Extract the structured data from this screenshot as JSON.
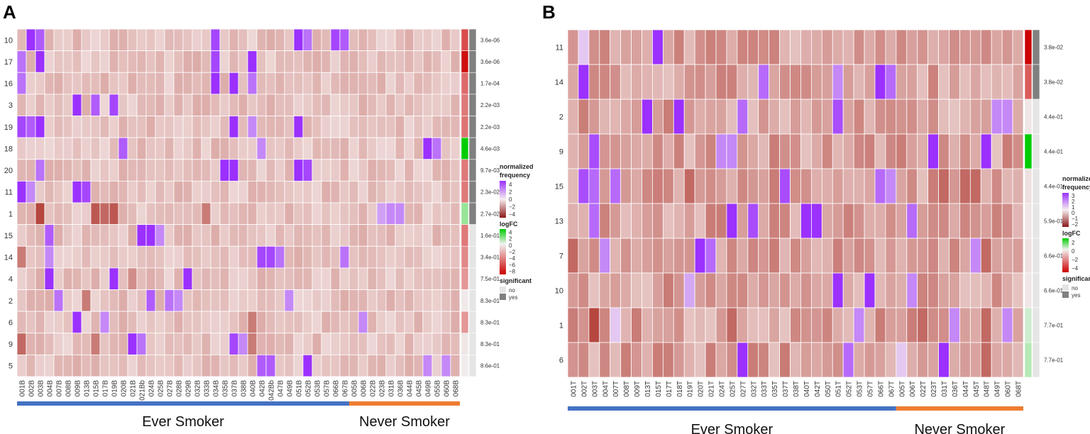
{
  "chart_data": [
    {
      "type": "heatmap",
      "panel": "A",
      "rows": [
        "10",
        "17",
        "16",
        "3",
        "19",
        "18",
        "20",
        "11",
        "1",
        "15",
        "14",
        "4",
        "2",
        "6",
        "9",
        "5"
      ],
      "columns": [
        "001B",
        "002B",
        "003B",
        "004B",
        "007B",
        "008B",
        "009B",
        "013B",
        "015B",
        "017B",
        "019B",
        "020B",
        "021B",
        "021Bb",
        "024B",
        "025B",
        "027B",
        "028B",
        "029B",
        "032B",
        "033B",
        "034B",
        "035B",
        "037B",
        "038B",
        "040B",
        "042B",
        "042Bb",
        "047B",
        "049B",
        "051B",
        "052B",
        "053B",
        "057B",
        "066B",
        "067B",
        "005B",
        "006B",
        "022B",
        "023B",
        "031B",
        "036B",
        "044B",
        "045B",
        "049B",
        "055B",
        "060B",
        "068B"
      ],
      "ever_smoker_columns": 36,
      "never_smoker_columns": 12,
      "p_values": [
        "3.6e-06",
        "3.6e-06",
        "1.7e-04",
        "2.2e-03",
        "2.2e-03",
        "4.6e-03",
        "9.7e-03",
        "2.3e-02",
        "2.7e-02",
        "1.6e-01",
        "3.4e-01",
        "7.5e-01",
        "8.3e-01",
        "8.3e-01",
        "8.3e-01",
        "8.6e-01"
      ],
      "significant": [
        "yes",
        "yes",
        "yes",
        "yes",
        "yes",
        "yes",
        "yes",
        "yes",
        "yes",
        "no",
        "no",
        "no",
        "no",
        "no",
        "no",
        "no"
      ],
      "logFC": [
        -5.5,
        -7.5,
        -4.5,
        -4.0,
        -4.2,
        4.5,
        -4.0,
        -4.0,
        1.5,
        -4.0,
        -3.5,
        -3.0,
        -0.3,
        -3.0,
        -0.4,
        -0.2
      ],
      "highlights": [
        [
          0,
          1,
          4
        ],
        [
          0,
          2,
          3
        ],
        [
          0,
          21,
          3.5
        ],
        [
          0,
          30,
          4
        ],
        [
          0,
          34,
          3.5
        ],
        [
          0,
          35,
          3
        ],
        [
          0,
          31,
          2.5
        ],
        [
          1,
          2,
          4
        ],
        [
          1,
          21,
          3.5
        ],
        [
          1,
          25,
          4
        ],
        [
          1,
          0,
          2.5
        ],
        [
          2,
          0,
          2.5
        ],
        [
          2,
          21,
          4
        ],
        [
          2,
          23,
          4
        ],
        [
          2,
          25,
          2.5
        ],
        [
          3,
          6,
          4
        ],
        [
          3,
          8,
          3
        ],
        [
          3,
          10,
          3.5
        ],
        [
          4,
          0,
          3.5
        ],
        [
          4,
          1,
          3
        ],
        [
          4,
          2,
          4
        ],
        [
          4,
          23,
          4
        ],
        [
          4,
          30,
          4
        ],
        [
          4,
          25,
          2
        ],
        [
          5,
          11,
          3
        ],
        [
          5,
          44,
          4
        ],
        [
          5,
          45,
          2.5
        ],
        [
          5,
          26,
          2
        ],
        [
          6,
          22,
          4
        ],
        [
          6,
          23,
          4
        ],
        [
          6,
          30,
          4
        ],
        [
          6,
          31,
          3.5
        ],
        [
          6,
          2,
          2.5
        ],
        [
          7,
          0,
          4
        ],
        [
          7,
          6,
          4
        ],
        [
          7,
          7,
          3.5
        ],
        [
          7,
          1,
          2
        ],
        [
          8,
          2,
          -4
        ],
        [
          8,
          8,
          -3.5
        ],
        [
          8,
          9,
          -3
        ],
        [
          8,
          10,
          -3.5
        ],
        [
          8,
          20,
          -2.5
        ],
        [
          8,
          40,
          2
        ],
        [
          8,
          41,
          2
        ],
        [
          8,
          39,
          1.5
        ],
        [
          9,
          3,
          3
        ],
        [
          9,
          13,
          4
        ],
        [
          9,
          14,
          4
        ],
        [
          9,
          15,
          2
        ],
        [
          10,
          26,
          3.5
        ],
        [
          10,
          27,
          3.5
        ],
        [
          10,
          28,
          2.5
        ],
        [
          10,
          35,
          2.5
        ],
        [
          10,
          3,
          2
        ],
        [
          10,
          0,
          -2.5
        ],
        [
          11,
          3,
          4
        ],
        [
          11,
          10,
          4
        ],
        [
          11,
          18,
          4
        ],
        [
          11,
          12,
          -2
        ],
        [
          12,
          4,
          2.5
        ],
        [
          12,
          14,
          3
        ],
        [
          12,
          16,
          2.5
        ],
        [
          12,
          17,
          2
        ],
        [
          12,
          29,
          2
        ],
        [
          12,
          7,
          -2.5
        ],
        [
          13,
          6,
          4
        ],
        [
          13,
          9,
          2
        ],
        [
          13,
          25,
          -2.5
        ],
        [
          13,
          37,
          2
        ],
        [
          14,
          0,
          -3
        ],
        [
          14,
          12,
          4
        ],
        [
          14,
          13,
          2.5
        ],
        [
          14,
          23,
          3.5
        ],
        [
          14,
          24,
          2
        ],
        [
          14,
          8,
          -2.5
        ],
        [
          14,
          25,
          -2.5
        ],
        [
          15,
          26,
          3
        ],
        [
          15,
          27,
          3
        ],
        [
          15,
          31,
          4
        ],
        [
          15,
          46,
          2
        ],
        [
          15,
          44,
          2
        ]
      ],
      "xlabel_left": "Ever Smoker",
      "xlabel_right": "Never Smoker"
    },
    {
      "type": "heatmap",
      "panel": "B",
      "rows": [
        "11",
        "14",
        "2",
        "9",
        "15",
        "13",
        "7",
        "10",
        "1",
        "6"
      ],
      "columns": [
        "001T",
        "002T",
        "003T",
        "004T",
        "007T",
        "008T",
        "009T",
        "013T",
        "015T",
        "017T",
        "018T",
        "019T",
        "020T",
        "021T",
        "024T",
        "025T",
        "027T",
        "032T",
        "033T",
        "035T",
        "037T",
        "038T",
        "040T",
        "042T",
        "050T",
        "051T",
        "052T",
        "053T",
        "057T",
        "066T",
        "067T",
        "005T",
        "006T",
        "022T",
        "023T",
        "031T",
        "036T",
        "044T",
        "045T",
        "048T",
        "049T",
        "060T",
        "068T"
      ],
      "ever_smoker_columns": 31,
      "never_smoker_columns": 12,
      "p_values": [
        "3.8e-02",
        "3.8e-02",
        "4.4e-01",
        "4.4e-01",
        "4.4e-01",
        "5.9e-01",
        "6.6e-01",
        "6.6e-01",
        "7.7e-01",
        "7.7e-01"
      ],
      "significant": [
        "yes",
        "yes",
        "no",
        "no",
        "no",
        "no",
        "no",
        "no",
        "no",
        "no"
      ],
      "logFC": [
        -4.0,
        -2.5,
        -0.2,
        2.0,
        -0.3,
        -0.2,
        -0.3,
        -0.2,
        0.3,
        0.5
      ],
      "highlights": [
        [
          0,
          8,
          3
        ],
        [
          0,
          1,
          0.5
        ],
        [
          1,
          1,
          3
        ],
        [
          1,
          18,
          2
        ],
        [
          1,
          25,
          1.5
        ],
        [
          1,
          29,
          3
        ],
        [
          1,
          30,
          2
        ],
        [
          1,
          12,
          -1
        ],
        [
          2,
          7,
          3
        ],
        [
          2,
          10,
          3
        ],
        [
          2,
          16,
          2
        ],
        [
          2,
          25,
          2.5
        ],
        [
          2,
          40,
          1.5
        ],
        [
          2,
          41,
          1.5
        ],
        [
          3,
          2,
          2.5
        ],
        [
          3,
          34,
          3
        ],
        [
          3,
          39,
          3
        ],
        [
          3,
          14,
          1.5
        ],
        [
          3,
          15,
          1.5
        ],
        [
          4,
          1,
          2.5
        ],
        [
          4,
          2,
          2
        ],
        [
          4,
          4,
          2
        ],
        [
          4,
          20,
          2.5
        ],
        [
          4,
          29,
          2
        ],
        [
          4,
          30,
          1.5
        ],
        [
          4,
          11,
          -1.5
        ],
        [
          4,
          35,
          -1.5
        ],
        [
          4,
          37,
          -1.5
        ],
        [
          4,
          38,
          -1.5
        ],
        [
          5,
          2,
          2
        ],
        [
          5,
          15,
          3
        ],
        [
          5,
          17,
          2.5
        ],
        [
          5,
          22,
          3
        ],
        [
          5,
          23,
          3
        ],
        [
          5,
          32,
          2
        ],
        [
          6,
          3,
          1.5
        ],
        [
          6,
          12,
          3
        ],
        [
          6,
          13,
          2
        ],
        [
          6,
          0,
          -1.5
        ],
        [
          6,
          39,
          -1.5
        ],
        [
          6,
          38,
          1.5
        ],
        [
          7,
          25,
          3
        ],
        [
          7,
          28,
          3
        ],
        [
          7,
          32,
          1.5
        ],
        [
          7,
          11,
          1
        ],
        [
          8,
          2,
          -2
        ],
        [
          8,
          15,
          -1.5
        ],
        [
          8,
          27,
          1.5
        ],
        [
          8,
          33,
          -1.5
        ],
        [
          8,
          36,
          1.5
        ],
        [
          8,
          39,
          -1.5
        ],
        [
          8,
          41,
          1.5
        ],
        [
          8,
          4,
          0.5
        ],
        [
          9,
          16,
          3
        ],
        [
          9,
          26,
          2
        ],
        [
          9,
          35,
          3
        ],
        [
          9,
          31,
          0.5
        ],
        [
          9,
          39,
          -1.5
        ],
        [
          9,
          15,
          -1
        ]
      ],
      "xlabel_left": "Ever Smoker",
      "xlabel_right": "Never Smoker"
    }
  ],
  "legendA": {
    "freq_title1": "normalized",
    "freq_title2": "frequency",
    "freq_ticks": [
      "4",
      "2",
      "0",
      "−2",
      "−4"
    ],
    "fc_title": "logFC",
    "fc_ticks": [
      "4",
      "2",
      "0",
      "−2",
      "−4",
      "−6",
      "−8"
    ],
    "sig_title": "significant",
    "sig_no": "no",
    "sig_yes": "yes"
  },
  "legendB": {
    "freq_title1": "normalized",
    "freq_title2": "frequency",
    "freq_ticks": [
      "3",
      "2",
      "1",
      "0",
      "−1",
      "−2"
    ],
    "fc_title": "logFC",
    "fc_ticks": [
      "2",
      "0",
      "−2",
      "−4"
    ],
    "sig_title": "significant",
    "sig_no": "no",
    "sig_yes": "yes"
  },
  "colors": {
    "ever_smoker_bar": "#4472C4",
    "never_smoker_bar": "#ED7D31",
    "purple": "#9B30FF",
    "dark_red": "#A52A2A",
    "sig_yes": "#808080",
    "sig_no": "#E5E5E5",
    "logfc_red": "#CC0000",
    "logfc_green": "#00CC00"
  }
}
